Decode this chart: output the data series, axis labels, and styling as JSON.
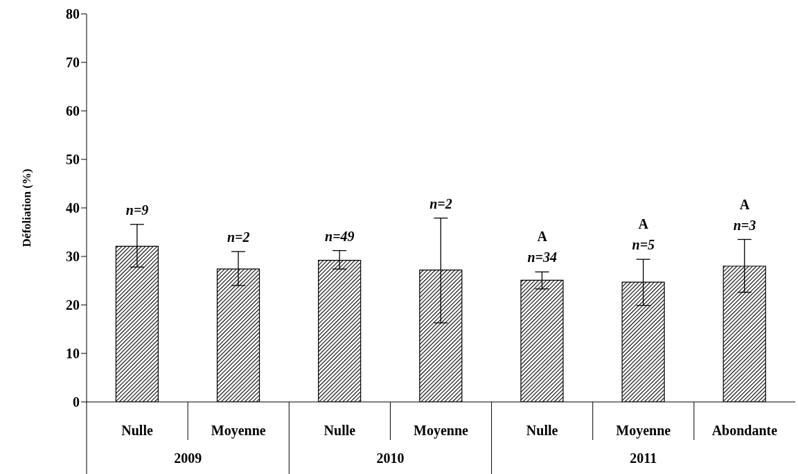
{
  "chart_data": {
    "type": "bar",
    "ylabel": "Défoliation (%)",
    "categories": [
      "Nulle",
      "Moyenne",
      "Nulle",
      "Moyenne",
      "Nulle",
      "Moyenne",
      "Abondante"
    ],
    "values": [
      32.1,
      27.4,
      29.2,
      27.2,
      25.1,
      24.7,
      28.0
    ],
    "errors": [
      [
        27.8,
        36.6
      ],
      [
        24.0,
        31.0
      ],
      [
        27.4,
        31.2
      ],
      [
        16.3,
        37.9
      ],
      [
        23.3,
        26.8
      ],
      [
        19.9,
        29.4
      ],
      [
        22.6,
        33.5
      ]
    ],
    "color": "#000000",
    "ylim": [
      0,
      80
    ],
    "yticks": [
      0,
      10,
      20,
      30,
      40,
      50,
      60,
      70,
      80
    ],
    "annotations": [
      {
        "text": "n=9",
        "x": "Nulle",
        "y": 32.1
      },
      {
        "text": "n=2",
        "x": "Moyenne",
        "y": 27.4
      },
      "n=49",
      "n=2",
      "A",
      "n=34",
      "A",
      "n=5",
      "A",
      "n=3",
      "2009",
      "2010",
      "2011"
    ]
  }
}
